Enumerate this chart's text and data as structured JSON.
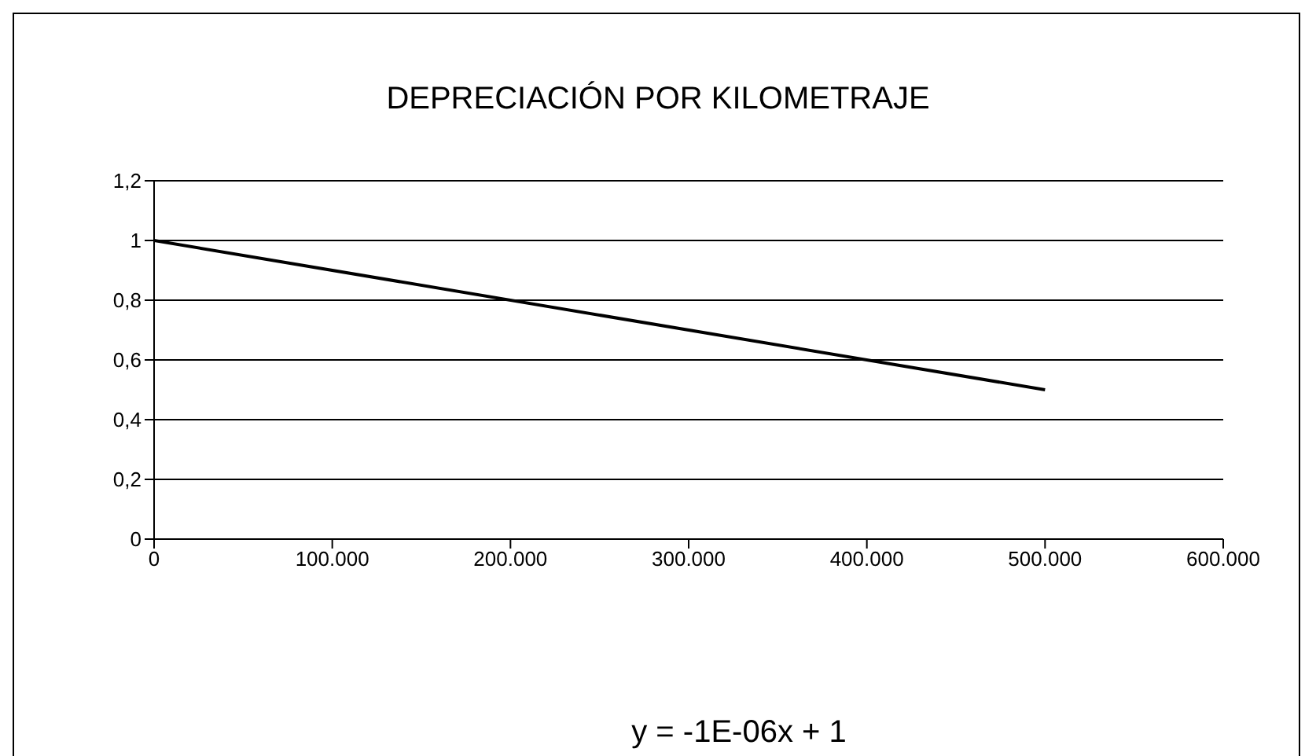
{
  "chart_data": {
    "type": "line",
    "title": "DEPRECIACIÓN POR KILOMETRAJE",
    "x": [
      0,
      500000
    ],
    "series": [
      {
        "color": "#000000",
        "values": [
          1,
          0.5
        ]
      }
    ],
    "xlim": [
      0,
      600000
    ],
    "xticks": [
      0,
      {
        "value": 100000,
        "label": "100.000"
      },
      {
        "value": 200000,
        "label": "200.000"
      },
      {
        "value": 300000,
        "label": "300.000"
      },
      {
        "value": 400000,
        "label": "400.000"
      },
      {
        "value": 500000,
        "label": "500.000"
      },
      {
        "value": 600000,
        "label": "600.000"
      }
    ],
    "ylim": [
      0,
      1.2
    ],
    "yticks": [
      0,
      {
        "value": 0.2,
        "label": "0,2"
      },
      {
        "value": 0.4,
        "label": "0,4"
      },
      {
        "value": 0.6,
        "label": "0,6"
      },
      {
        "value": 0.8,
        "label": "0,8"
      },
      1,
      {
        "value": 1.2,
        "label": "1,2"
      }
    ],
    "grid": "y",
    "legend": false,
    "marker": "none",
    "line_style": "solid",
    "annotations": [
      "y = -1E-06x + 1"
    ]
  }
}
